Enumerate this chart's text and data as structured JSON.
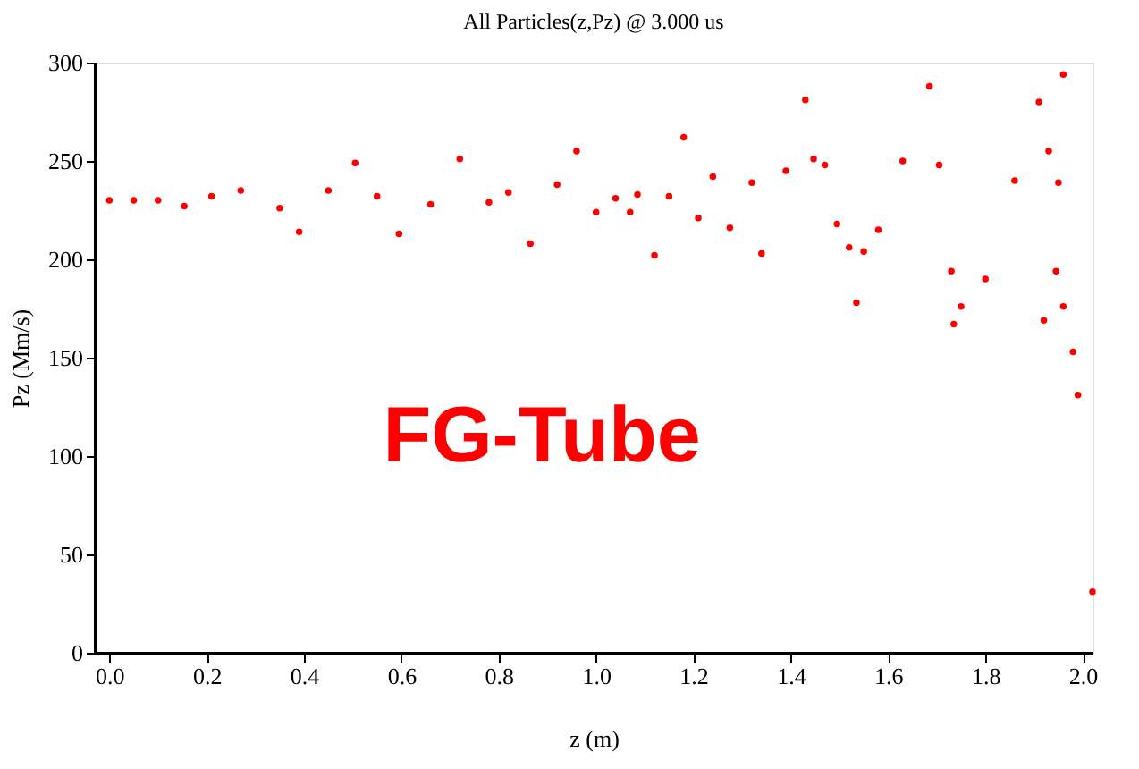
{
  "chart_data": {
    "type": "scatter",
    "title": "All Particles(z,Pz) @ 3.000 us",
    "xlabel": "z (m)",
    "ylabel": "Pz (Mm/s)",
    "annotations": [
      "FG-Tube"
    ],
    "xlim": [
      -0.03,
      2.02
    ],
    "ylim": [
      0,
      300
    ],
    "xticks": [
      {
        "value": 0,
        "label": "0.0"
      },
      0.2,
      0.4,
      0.6,
      0.8,
      {
        "value": 1,
        "label": "1.0"
      },
      1.2,
      1.4,
      1.6,
      1.8,
      {
        "value": 2,
        "label": "2.0"
      }
    ],
    "yticks": [
      0,
      50,
      100,
      150,
      200,
      250,
      300
    ],
    "grid": false,
    "marker": "circle",
    "series": [
      {
        "color": "#ff0000",
        "x": [
          0,
          0.05,
          0.1,
          0.154,
          0.21,
          0.27,
          0.35,
          0.39,
          0.45,
          0.505,
          0.55,
          0.595,
          0.66,
          0.72,
          0.78,
          0.82,
          0.865,
          0.92,
          0.96,
          1.0,
          1.04,
          1.07,
          1.085,
          1.12,
          1.15,
          1.18,
          1.21,
          1.24,
          1.275,
          1.32,
          1.34,
          1.39,
          1.43,
          1.447,
          1.47,
          1.495,
          1.52,
          1.55,
          1.535,
          1.58,
          1.63,
          1.685,
          1.705,
          1.73,
          1.75,
          1.735,
          1.8,
          1.86,
          1.91,
          1.96,
          1.93,
          1.95,
          1.945,
          1.92,
          1.96,
          1.98,
          1.99,
          2.02
        ],
        "values": [
          230,
          230,
          230,
          227,
          232,
          235,
          226,
          214,
          235,
          249,
          232,
          213,
          228,
          251,
          229,
          234,
          208,
          238,
          255,
          224,
          231,
          224,
          233,
          202,
          232,
          262,
          221,
          242,
          216,
          239,
          203,
          245,
          281,
          251,
          248,
          218,
          206,
          204,
          178,
          215,
          250,
          288,
          248,
          194,
          176,
          167,
          190,
          240,
          280,
          294,
          255,
          239,
          194,
          169,
          176,
          153,
          131,
          31
        ]
      }
    ]
  }
}
